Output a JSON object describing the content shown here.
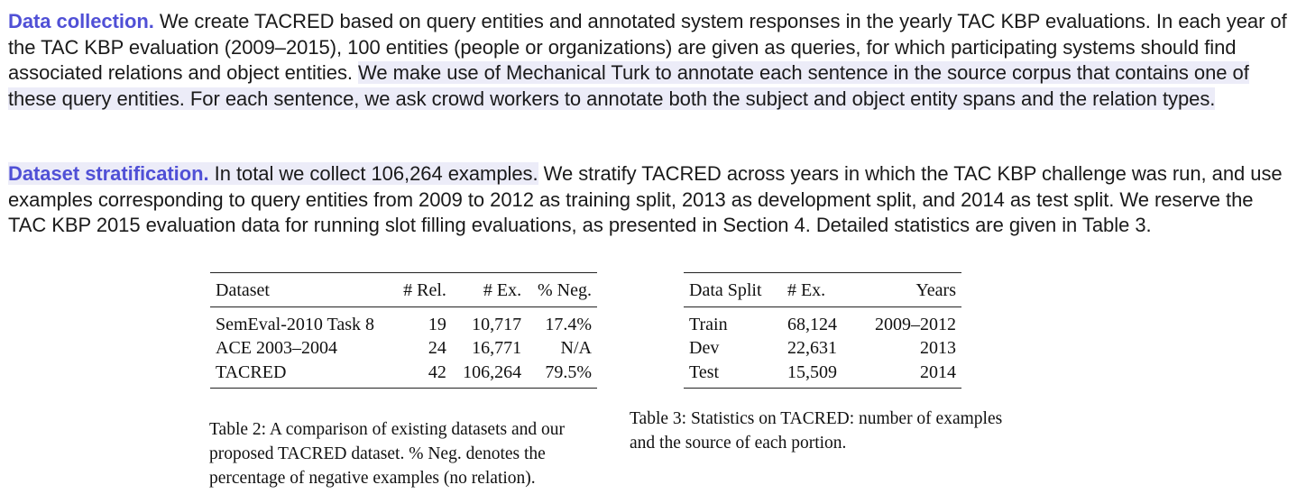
{
  "paragraphs": {
    "data_collection": {
      "heading": "Data collection.",
      "text_a": " We create TACRED based on query entities and annotated system responses in the yearly TAC KBP evaluations. In each year of the TAC KBP evaluation (2009–2015), 100 entities (people or organizations) are given as queries, for which participating systems should find associated relations and object entities. ",
      "text_b": "We make use of Mechanical Turk to annotate each sentence in the source corpus that contains one of these query entities. For each sentence, we ask crowd workers to annotate both the subject and object entity spans and the relation types."
    },
    "dataset_stratification": {
      "heading": "Dataset stratification.",
      "text_a": " In total we collect 106,264 examples.",
      "text_b": " We stratify TACRED across years in which the TAC KBP challenge was run, and use examples corresponding to query entities from 2009 to 2012 as training split, 2013 as development split, and 2014 as test split. We reserve the TAC KBP 2015 evaluation data for running slot filling evaluations, as presented in Section 4. Detailed statistics are given in Table 3."
    }
  },
  "table2": {
    "headers": [
      "Dataset",
      "# Rel.",
      "# Ex.",
      "% Neg."
    ],
    "rows": [
      [
        "SemEval-2010 Task 8",
        "19",
        "10,717",
        "17.4%"
      ],
      [
        "ACE 2003–2004",
        "24",
        "16,771",
        "N/A"
      ],
      [
        "TACRED",
        "42",
        "106,264",
        "79.5%"
      ]
    ],
    "caption": "Table 2: A comparison of existing datasets and our proposed TACRED dataset. % Neg. denotes the percentage of negative examples (no relation)."
  },
  "table3": {
    "headers": [
      "Data Split",
      "# Ex.",
      "Years"
    ],
    "rows": [
      [
        "Train",
        "68,124",
        "2009–2012"
      ],
      [
        "Dev",
        "22,631",
        "2013"
      ],
      [
        "Test",
        "15,509",
        "2014"
      ]
    ],
    "caption": "Table 3: Statistics on TACRED: number of examples and the source of each portion."
  }
}
